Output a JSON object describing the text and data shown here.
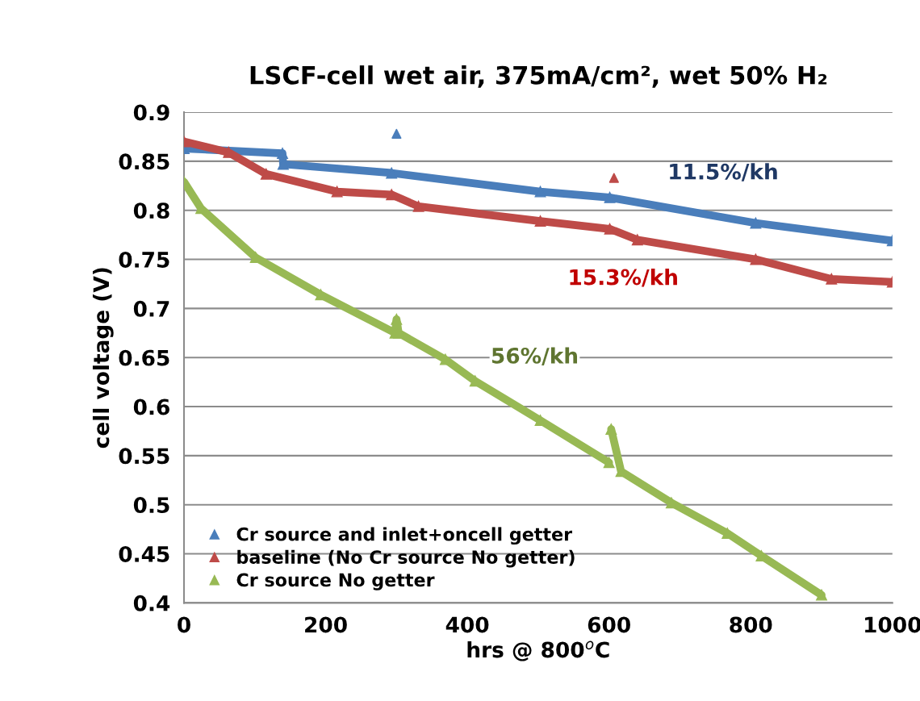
{
  "chart_data": {
    "type": "line",
    "title": "LSCF-cell wet air, 375mA/cm², wet 50% H₂",
    "xlabel": "hrs @ 800$^{o}$C",
    "ylabel": "cell voltage (V)",
    "xlim": [
      0,
      1000
    ],
    "xticks": [
      0,
      200,
      400,
      600,
      800,
      1000
    ],
    "ylim": [
      0.4,
      0.9
    ],
    "yticks": [
      0.4,
      0.45,
      0.5,
      0.55,
      0.6,
      0.65,
      0.7,
      0.75,
      0.8,
      0.85,
      0.9
    ],
    "grid": "y",
    "legend": "bottom left",
    "marker": "triangle",
    "line_style": "solid",
    "series": [
      {
        "name": "Cr source and inlet+oncell getter",
        "color": "#4a7ebb",
        "x": [
          0,
          139,
          140,
          293,
          503,
          601,
          807,
          1000
        ],
        "values": [
          0.863,
          0.858,
          0.847,
          0.838,
          0.819,
          0.813,
          0.787,
          0.769
        ]
      },
      {
        "name": "baseline (No Cr source No getter)",
        "color": "#be4b48",
        "x": [
          0,
          63,
          116,
          216,
          293,
          331,
          503,
          601,
          640,
          807,
          914,
          1000
        ],
        "values": [
          0.87,
          0.859,
          0.837,
          0.819,
          0.816,
          0.804,
          0.789,
          0.781,
          0.77,
          0.75,
          0.73,
          0.727
        ]
      },
      {
        "name": "Cr source No getter",
        "color": "#98b954",
        "x": [
          0,
          24,
          101,
          193,
          298,
          300,
          303,
          369,
          411,
          503,
          600,
          602,
          603,
          617,
          688,
          767,
          815,
          900
        ],
        "values": [
          0.829,
          0.802,
          0.752,
          0.714,
          0.675,
          0.689,
          0.675,
          0.648,
          0.626,
          0.586,
          0.543,
          null,
          0.577,
          0.534,
          0.502,
          0.471,
          0.448,
          0.408
        ]
      },
      {
        "type": "scatter",
        "color": "#4a7ebb",
        "x": [
          300
        ],
        "values": [
          0.878
        ]
      },
      {
        "type": "scatter",
        "color": "#be4b48",
        "x": [
          607
        ],
        "values": [
          0.833
        ]
      }
    ],
    "annotations": [
      "11.5%/kh",
      "15.3%/kh",
      "56%/kh"
    ]
  }
}
